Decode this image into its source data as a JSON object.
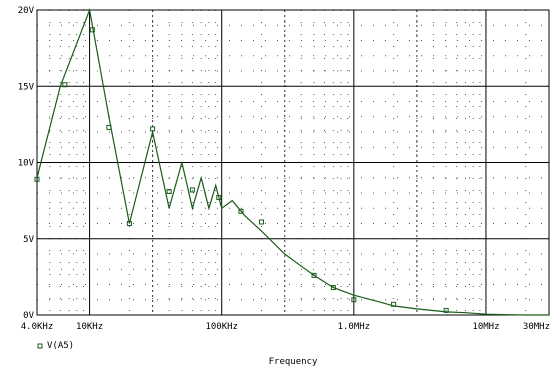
{
  "chart_data": {
    "type": "line",
    "xlabel": "Frequency",
    "ylabel": "",
    "x_scale": "log",
    "xlim_hz": [
      4000,
      30000000
    ],
    "ylim": [
      0,
      20
    ],
    "grid": true,
    "x_ticks": [
      {
        "value": 4000,
        "label": "4.0KHz"
      },
      {
        "value": 10000,
        "label": "10KHz"
      },
      {
        "value": 100000,
        "label": "100KHz"
      },
      {
        "value": 1000000,
        "label": "1.0MHz"
      },
      {
        "value": 10000000,
        "label": "10MHz"
      },
      {
        "value": 30000000,
        "label": "30MHz"
      }
    ],
    "y_ticks": [
      {
        "value": 0,
        "label": "0V"
      },
      {
        "value": 5,
        "label": "5V"
      },
      {
        "value": 10,
        "label": "10V"
      },
      {
        "value": 15,
        "label": "15V"
      },
      {
        "value": 20,
        "label": "20V"
      }
    ],
    "legend": [
      {
        "label": "V(A5)",
        "marker": "square",
        "color": "#1a5c1a"
      }
    ],
    "legend_position": "bottom-left",
    "series": [
      {
        "name": "V(A5)",
        "color": "#1a5c1a",
        "x_hz": [
          4000,
          6000,
          10000,
          14000,
          20000,
          30000,
          40000,
          50000,
          60000,
          70000,
          80000,
          90000,
          100000,
          120000,
          150000,
          200000,
          300000,
          400000,
          500000,
          700000,
          1000000,
          1500000,
          2000000,
          3000000,
          5000000,
          7000000,
          10000000,
          15000000,
          20000000,
          30000000
        ],
        "values": [
          9.0,
          15.0,
          20.0,
          13.0,
          6.0,
          12.0,
          7.0,
          10.0,
          7.0,
          9.0,
          7.0,
          8.5,
          7.0,
          7.5,
          6.5,
          5.5,
          4.0,
          3.2,
          2.6,
          1.8,
          1.3,
          0.9,
          0.6,
          0.4,
          0.2,
          0.15,
          0.05,
          0.02,
          0.0,
          0.0
        ],
        "markers_x_hz": [
          4000,
          6500,
          10500,
          14000,
          20000,
          30000,
          40000,
          60000,
          95000,
          140000,
          200000,
          500000,
          700000,
          1000000,
          2000000,
          5000000
        ],
        "markers_values": [
          8.9,
          15.1,
          18.7,
          12.3,
          6.0,
          12.2,
          8.1,
          8.2,
          7.7,
          6.8,
          6.1,
          2.6,
          1.8,
          1.0,
          0.7,
          0.3
        ]
      }
    ]
  }
}
